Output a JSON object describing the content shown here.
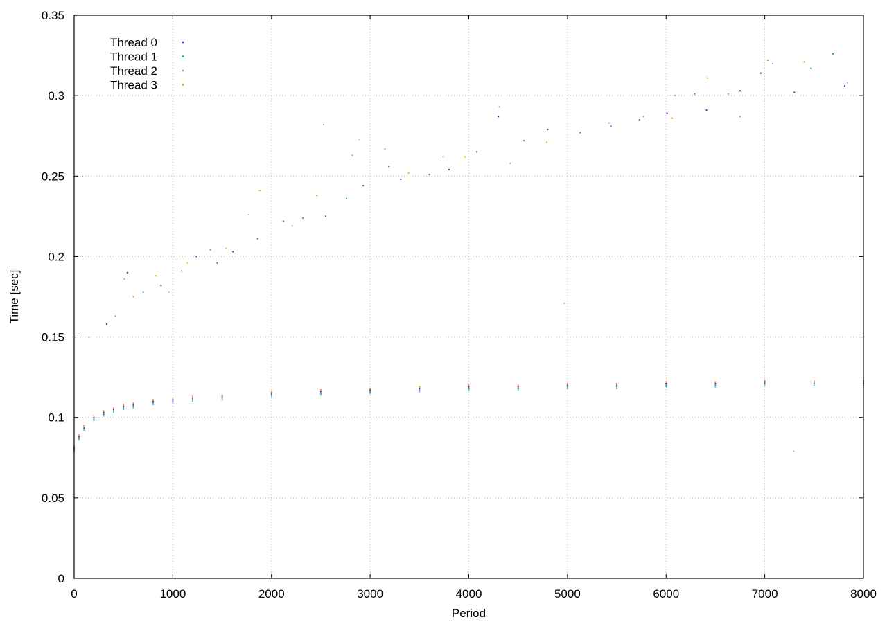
{
  "chart_data": {
    "type": "scatter",
    "title": "",
    "xlabel": "Period",
    "ylabel": "Time [sec]",
    "xlim": [
      0,
      8000
    ],
    "ylim": [
      0,
      0.35
    ],
    "xticks": [
      0,
      1000,
      2000,
      3000,
      4000,
      5000,
      6000,
      7000,
      8000
    ],
    "yticks": [
      0,
      0.05,
      0.1,
      0.15,
      0.2,
      0.25,
      0.3,
      0.35
    ],
    "grid": true,
    "legend_position": "top-left",
    "series": [
      {
        "name": "Thread 0",
        "color": "#9400d3",
        "points": [
          [
            0,
            0.081
          ],
          [
            50,
            0.088
          ],
          [
            100,
            0.094
          ],
          [
            200,
            0.1
          ],
          [
            300,
            0.103
          ],
          [
            400,
            0.105
          ],
          [
            500,
            0.107
          ],
          [
            600,
            0.108
          ],
          [
            800,
            0.11
          ],
          [
            1000,
            0.111
          ],
          [
            1200,
            0.112
          ],
          [
            1500,
            0.113
          ],
          [
            2000,
            0.115
          ],
          [
            2500,
            0.116
          ],
          [
            3000,
            0.117
          ],
          [
            3500,
            0.118
          ],
          [
            4000,
            0.119
          ],
          [
            4500,
            0.119
          ],
          [
            5000,
            0.12
          ],
          [
            5500,
            0.12
          ],
          [
            6000,
            0.121
          ],
          [
            6500,
            0.121
          ],
          [
            7000,
            0.122
          ],
          [
            7500,
            0.122
          ],
          [
            8000,
            0.122
          ],
          [
            330,
            0.158
          ],
          [
            540,
            0.19
          ],
          [
            880,
            0.182
          ],
          [
            1240,
            0.2
          ],
          [
            1610,
            0.203
          ],
          [
            2120,
            0.222
          ],
          [
            2550,
            0.225
          ],
          [
            2930,
            0.244
          ],
          [
            3310,
            0.248
          ],
          [
            3800,
            0.254
          ],
          [
            4300,
            0.287
          ],
          [
            4800,
            0.279
          ],
          [
            5440,
            0.281
          ],
          [
            6010,
            0.289
          ],
          [
            6410,
            0.291
          ],
          [
            6750,
            0.303
          ],
          [
            7300,
            0.302
          ],
          [
            7810,
            0.306
          ]
        ]
      },
      {
        "name": "Thread 1",
        "color": "#009e73",
        "points": [
          [
            0,
            0.08
          ],
          [
            50,
            0.087
          ],
          [
            100,
            0.093
          ],
          [
            200,
            0.099
          ],
          [
            300,
            0.102
          ],
          [
            400,
            0.104
          ],
          [
            500,
            0.106
          ],
          [
            600,
            0.107
          ],
          [
            800,
            0.109
          ],
          [
            1000,
            0.11
          ],
          [
            1200,
            0.111
          ],
          [
            1500,
            0.112
          ],
          [
            2000,
            0.114
          ],
          [
            2500,
            0.115
          ],
          [
            3000,
            0.116
          ],
          [
            3500,
            0.117
          ],
          [
            4000,
            0.118
          ],
          [
            4500,
            0.118
          ],
          [
            5000,
            0.119
          ],
          [
            5500,
            0.119
          ],
          [
            6000,
            0.12
          ],
          [
            6500,
            0.12
          ],
          [
            7000,
            0.121
          ],
          [
            7500,
            0.121
          ],
          [
            8000,
            0.121
          ],
          [
            420,
            0.163
          ],
          [
            700,
            0.178
          ],
          [
            1090,
            0.191
          ],
          [
            1450,
            0.196
          ],
          [
            1860,
            0.211
          ],
          [
            2320,
            0.224
          ],
          [
            2760,
            0.236
          ],
          [
            3190,
            0.256
          ],
          [
            3600,
            0.251
          ],
          [
            4080,
            0.265
          ],
          [
            4560,
            0.272
          ],
          [
            5130,
            0.277
          ],
          [
            5730,
            0.285
          ],
          [
            6290,
            0.301
          ],
          [
            6960,
            0.314
          ],
          [
            7470,
            0.317
          ],
          [
            7690,
            0.326
          ]
        ]
      },
      {
        "name": "Thread 2",
        "color": "#56b4e9",
        "points": [
          [
            0,
            0.079
          ],
          [
            50,
            0.086
          ],
          [
            100,
            0.092
          ],
          [
            200,
            0.098
          ],
          [
            300,
            0.101
          ],
          [
            400,
            0.103
          ],
          [
            500,
            0.105
          ],
          [
            600,
            0.106
          ],
          [
            800,
            0.108
          ],
          [
            1000,
            0.109
          ],
          [
            1200,
            0.11
          ],
          [
            1500,
            0.111
          ],
          [
            2000,
            0.113
          ],
          [
            2500,
            0.114
          ],
          [
            3000,
            0.115
          ],
          [
            3500,
            0.116
          ],
          [
            4000,
            0.117
          ],
          [
            4500,
            0.117
          ],
          [
            5000,
            0.118
          ],
          [
            5500,
            0.118
          ],
          [
            6000,
            0.119
          ],
          [
            6500,
            0.119
          ],
          [
            7000,
            0.12
          ],
          [
            7500,
            0.12
          ],
          [
            8000,
            0.12
          ],
          [
            150,
            0.15
          ],
          [
            510,
            0.186
          ],
          [
            960,
            0.178
          ],
          [
            1380,
            0.204
          ],
          [
            1770,
            0.226
          ],
          [
            2210,
            0.219
          ],
          [
            2530,
            0.282
          ],
          [
            2890,
            0.273
          ],
          [
            3150,
            0.267
          ],
          [
            3740,
            0.262
          ],
          [
            4310,
            0.293
          ],
          [
            4970,
            0.171
          ],
          [
            5420,
            0.283
          ],
          [
            6090,
            0.3
          ],
          [
            6630,
            0.301
          ],
          [
            7080,
            0.32
          ],
          [
            7290,
            0.079
          ],
          [
            7840,
            0.308
          ]
        ]
      },
      {
        "name": "Thread 3",
        "color": "#e69f00",
        "points": [
          [
            0,
            0.082
          ],
          [
            50,
            0.089
          ],
          [
            100,
            0.095
          ],
          [
            200,
            0.101
          ],
          [
            300,
            0.104
          ],
          [
            400,
            0.106
          ],
          [
            500,
            0.108
          ],
          [
            600,
            0.109
          ],
          [
            800,
            0.111
          ],
          [
            1000,
            0.112
          ],
          [
            1200,
            0.113
          ],
          [
            1500,
            0.114
          ],
          [
            2000,
            0.116
          ],
          [
            2500,
            0.117
          ],
          [
            3000,
            0.118
          ],
          [
            3500,
            0.119
          ],
          [
            4000,
            0.12
          ],
          [
            4500,
            0.12
          ],
          [
            5000,
            0.121
          ],
          [
            5500,
            0.121
          ],
          [
            6000,
            0.122
          ],
          [
            6500,
            0.122
          ],
          [
            7000,
            0.123
          ],
          [
            7500,
            0.123
          ],
          [
            8000,
            0.123
          ],
          [
            600,
            0.175
          ],
          [
            830,
            0.188
          ],
          [
            1150,
            0.196
          ],
          [
            1540,
            0.205
          ],
          [
            1880,
            0.241
          ],
          [
            2460,
            0.238
          ],
          [
            2820,
            0.263
          ],
          [
            3390,
            0.252
          ],
          [
            3960,
            0.262
          ],
          [
            4420,
            0.258
          ],
          [
            4790,
            0.271
          ],
          [
            5770,
            0.287
          ],
          [
            6060,
            0.286
          ],
          [
            6420,
            0.311
          ],
          [
            6750,
            0.287
          ],
          [
            7030,
            0.322
          ],
          [
            7400,
            0.321
          ]
        ]
      }
    ]
  }
}
